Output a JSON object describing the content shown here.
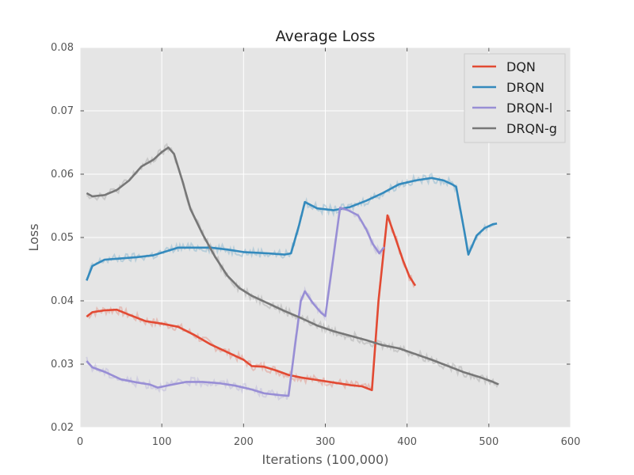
{
  "chart_data": {
    "type": "line",
    "title": "Average Loss",
    "xlabel": "Iterations (100,000)",
    "ylabel": "Loss",
    "xlim": [
      0,
      600
    ],
    "ylim": [
      0.02,
      0.08
    ],
    "xticks": [
      0,
      100,
      200,
      300,
      400,
      500,
      600
    ],
    "yticks": [
      0.02,
      0.03,
      0.04,
      0.05,
      0.06,
      0.07,
      0.08
    ],
    "xtick_labels": [
      "0",
      "100",
      "200",
      "300",
      "400",
      "500",
      "600"
    ],
    "ytick_labels": [
      "0.02",
      "0.03",
      "0.04",
      "0.05",
      "0.06",
      "0.07",
      "0.08"
    ],
    "grid": true,
    "legend_position": "top-right",
    "background": "#e5e5e5",
    "series": [
      {
        "name": "DQN",
        "color": "#e24a33",
        "points": [
          [
            8,
            0.0375
          ],
          [
            15,
            0.0382
          ],
          [
            30,
            0.0385
          ],
          [
            45,
            0.0386
          ],
          [
            60,
            0.0378
          ],
          [
            80,
            0.0368
          ],
          [
            100,
            0.0364
          ],
          [
            120,
            0.0359
          ],
          [
            140,
            0.0346
          ],
          [
            160,
            0.0331
          ],
          [
            180,
            0.0319
          ],
          [
            200,
            0.0307
          ],
          [
            210,
            0.0297
          ],
          [
            225,
            0.0296
          ],
          [
            240,
            0.029
          ],
          [
            255,
            0.0283
          ],
          [
            270,
            0.0279
          ],
          [
            290,
            0.0275
          ],
          [
            310,
            0.0271
          ],
          [
            330,
            0.0267
          ],
          [
            345,
            0.0265
          ],
          [
            357,
            0.0259
          ],
          [
            365,
            0.04
          ],
          [
            376,
            0.0535
          ],
          [
            385,
            0.0502
          ],
          [
            395,
            0.0464
          ],
          [
            403,
            0.0438
          ],
          [
            410,
            0.0424
          ]
        ]
      },
      {
        "name": "DRQN",
        "color": "#348abd",
        "points": [
          [
            8,
            0.0432
          ],
          [
            15,
            0.0455
          ],
          [
            30,
            0.0465
          ],
          [
            50,
            0.0467
          ],
          [
            70,
            0.0469
          ],
          [
            90,
            0.0472
          ],
          [
            110,
            0.048
          ],
          [
            120,
            0.0484
          ],
          [
            140,
            0.0484
          ],
          [
            160,
            0.0484
          ],
          [
            180,
            0.0481
          ],
          [
            200,
            0.0477
          ],
          [
            230,
            0.0475
          ],
          [
            250,
            0.0473
          ],
          [
            258,
            0.0475
          ],
          [
            268,
            0.052
          ],
          [
            275,
            0.0556
          ],
          [
            290,
            0.0546
          ],
          [
            310,
            0.0543
          ],
          [
            330,
            0.0548
          ],
          [
            350,
            0.0558
          ],
          [
            370,
            0.057
          ],
          [
            390,
            0.0584
          ],
          [
            410,
            0.059
          ],
          [
            430,
            0.0594
          ],
          [
            445,
            0.059
          ],
          [
            455,
            0.0584
          ],
          [
            460,
            0.058
          ],
          [
            470,
            0.051
          ],
          [
            475,
            0.0473
          ],
          [
            480,
            0.0488
          ],
          [
            485,
            0.0503
          ],
          [
            495,
            0.0515
          ],
          [
            505,
            0.0521
          ],
          [
            510,
            0.0522
          ]
        ]
      },
      {
        "name": "DRQN-l",
        "color": "#988ed5",
        "points": [
          [
            8,
            0.0305
          ],
          [
            15,
            0.0295
          ],
          [
            30,
            0.0288
          ],
          [
            50,
            0.0276
          ],
          [
            70,
            0.0271
          ],
          [
            85,
            0.0268
          ],
          [
            95,
            0.0263
          ],
          [
            110,
            0.0267
          ],
          [
            130,
            0.0272
          ],
          [
            150,
            0.0272
          ],
          [
            170,
            0.027
          ],
          [
            190,
            0.0266
          ],
          [
            210,
            0.026
          ],
          [
            225,
            0.0254
          ],
          [
            245,
            0.0251
          ],
          [
            255,
            0.025
          ],
          [
            262,
            0.032
          ],
          [
            270,
            0.04
          ],
          [
            275,
            0.0415
          ],
          [
            285,
            0.0396
          ],
          [
            295,
            0.0381
          ],
          [
            300,
            0.0376
          ],
          [
            310,
            0.047
          ],
          [
            318,
            0.0547
          ],
          [
            328,
            0.0543
          ],
          [
            340,
            0.0535
          ],
          [
            350,
            0.0513
          ],
          [
            358,
            0.049
          ],
          [
            366,
            0.0475
          ],
          [
            372,
            0.0485
          ]
        ]
      },
      {
        "name": "DRQN-g",
        "color": "#777777",
        "points": [
          [
            8,
            0.057
          ],
          [
            15,
            0.0565
          ],
          [
            30,
            0.0567
          ],
          [
            45,
            0.0575
          ],
          [
            60,
            0.059
          ],
          [
            75,
            0.0612
          ],
          [
            90,
            0.0623
          ],
          [
            100,
            0.0635
          ],
          [
            108,
            0.0642
          ],
          [
            115,
            0.0632
          ],
          [
            125,
            0.059
          ],
          [
            135,
            0.0545
          ],
          [
            150,
            0.0505
          ],
          [
            165,
            0.047
          ],
          [
            180,
            0.044
          ],
          [
            195,
            0.042
          ],
          [
            210,
            0.0408
          ],
          [
            230,
            0.0396
          ],
          [
            250,
            0.0384
          ],
          [
            270,
            0.0373
          ],
          [
            290,
            0.0361
          ],
          [
            310,
            0.0352
          ],
          [
            330,
            0.0345
          ],
          [
            350,
            0.0338
          ],
          [
            370,
            0.033
          ],
          [
            390,
            0.0325
          ],
          [
            410,
            0.0316
          ],
          [
            430,
            0.0307
          ],
          [
            450,
            0.0297
          ],
          [
            470,
            0.0287
          ],
          [
            490,
            0.0279
          ],
          [
            505,
            0.0272
          ],
          [
            512,
            0.0268
          ]
        ]
      }
    ]
  }
}
